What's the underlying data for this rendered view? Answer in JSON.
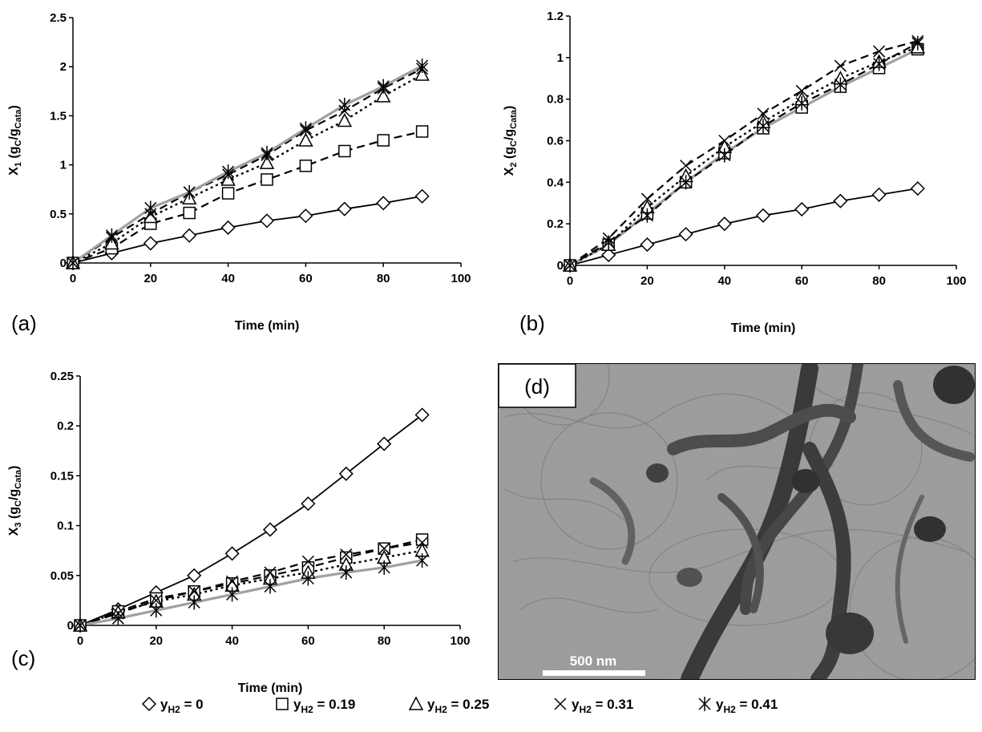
{
  "panels": {
    "a": {
      "letter": "(a)"
    },
    "b": {
      "letter": "(b)"
    },
    "c": {
      "letter": "(c)"
    },
    "d": {
      "letter": "(d)",
      "scale_label": "500 nm"
    }
  },
  "legend": [
    {
      "marker": "diamond",
      "label": "y",
      "sub": "H2",
      "value": " = 0"
    },
    {
      "marker": "square",
      "label": "y",
      "sub": "H2",
      "value": " = 0.19"
    },
    {
      "marker": "triangle",
      "label": "y",
      "sub": "H2",
      "value": " = 0.25"
    },
    {
      "marker": "x",
      "label": "y",
      "sub": "H2",
      "value": " = 0.31"
    },
    {
      "marker": "asterisk",
      "label": "y",
      "sub": "H2",
      "value": " = 0.41"
    }
  ],
  "colors": {
    "gray_line": "#a0a0a0",
    "black": "#000000",
    "tem_background": "#9a9a9a"
  },
  "chart_data": [
    {
      "type": "line",
      "panel": "a",
      "xlabel": "Time (min)",
      "ylabel": {
        "main": "X",
        "sub1": "1",
        "unit_open": " (g",
        "sub2": "C",
        "mid": "/g",
        "sub3": "Cata",
        "unit_close": ")"
      },
      "xlim": [
        0,
        100
      ],
      "ylim": [
        0,
        2.5
      ],
      "xticks": [
        0,
        20,
        40,
        60,
        80,
        100
      ],
      "yticks": [
        0,
        0.5,
        1,
        1.5,
        2,
        2.5
      ],
      "ytick_labels": [
        "0",
        "0.5",
        "1",
        "1.5",
        "2",
        "2.5"
      ],
      "x": [
        0,
        10,
        20,
        30,
        40,
        50,
        60,
        70,
        80,
        90
      ],
      "series": [
        {
          "marker": "diamond",
          "style": "solid",
          "values": [
            0,
            0.1,
            0.2,
            0.28,
            0.36,
            0.43,
            0.48,
            0.55,
            0.61,
            0.68
          ]
        },
        {
          "marker": "square",
          "style": "dashed",
          "values": [
            0,
            0.15,
            0.4,
            0.51,
            0.71,
            0.85,
            0.99,
            1.14,
            1.25,
            1.34
          ]
        },
        {
          "marker": "triangle",
          "style": "dotted",
          "values": [
            0,
            0.2,
            0.47,
            0.66,
            0.85,
            1.02,
            1.25,
            1.45,
            1.7,
            1.92
          ]
        },
        {
          "marker": "x",
          "style": "dashed",
          "values": [
            0,
            0.26,
            0.5,
            0.72,
            0.9,
            1.1,
            1.35,
            1.55,
            1.78,
            1.98
          ]
        },
        {
          "marker": "asterisk",
          "style": "gray",
          "values": [
            0,
            0.28,
            0.56,
            0.72,
            0.93,
            1.12,
            1.37,
            1.61,
            1.8,
            2.01
          ]
        }
      ]
    },
    {
      "type": "line",
      "panel": "b",
      "xlabel": "Time (min)",
      "ylabel": {
        "main": "X",
        "sub1": "2",
        "unit_open": " (g",
        "sub2": "C",
        "mid": "/g",
        "sub3": "Cata",
        "unit_close": ")"
      },
      "xlim": [
        0,
        100
      ],
      "ylim": [
        0,
        1.2
      ],
      "xticks": [
        0,
        20,
        40,
        60,
        80,
        100
      ],
      "yticks": [
        0,
        0.2,
        0.4,
        0.6,
        0.8,
        1,
        1.2
      ],
      "ytick_labels": [
        "0",
        "0.2",
        "0.4",
        "0.6",
        "0.8",
        "1",
        "1.2"
      ],
      "x": [
        0,
        10,
        20,
        30,
        40,
        50,
        60,
        70,
        80,
        90
      ],
      "series": [
        {
          "marker": "diamond",
          "style": "solid",
          "values": [
            0,
            0.05,
            0.1,
            0.15,
            0.2,
            0.24,
            0.27,
            0.31,
            0.34,
            0.37
          ]
        },
        {
          "marker": "square",
          "style": "gray",
          "values": [
            0,
            0.1,
            0.25,
            0.4,
            0.54,
            0.66,
            0.76,
            0.86,
            0.95,
            1.04
          ]
        },
        {
          "marker": "triangle",
          "style": "dotted",
          "values": [
            0,
            0.1,
            0.28,
            0.43,
            0.57,
            0.69,
            0.8,
            0.9,
            0.98,
            1.05
          ]
        },
        {
          "marker": "x",
          "style": "dashed",
          "values": [
            0,
            0.13,
            0.32,
            0.48,
            0.6,
            0.73,
            0.84,
            0.96,
            1.03,
            1.08
          ]
        },
        {
          "marker": "asterisk",
          "style": "dashed",
          "values": [
            0,
            0.11,
            0.24,
            0.4,
            0.53,
            0.67,
            0.78,
            0.87,
            0.97,
            1.07
          ]
        }
      ]
    },
    {
      "type": "line",
      "panel": "c",
      "xlabel": "Time (min)",
      "ylabel": {
        "main": "X",
        "sub1": "3",
        "unit_open": " (g",
        "sub2": "C",
        "mid": "/g",
        "sub3": "Cata",
        "unit_close": ")"
      },
      "xlim": [
        0,
        100
      ],
      "ylim": [
        0,
        0.25
      ],
      "xticks": [
        0,
        20,
        40,
        60,
        80,
        100
      ],
      "yticks": [
        0,
        0.05,
        0.1,
        0.15,
        0.2,
        0.25
      ],
      "ytick_labels": [
        "0",
        "0.05",
        "0.1",
        "0.15",
        "0.2",
        "0.25"
      ],
      "x": [
        0,
        10,
        20,
        30,
        40,
        50,
        60,
        70,
        80,
        90
      ],
      "series": [
        {
          "marker": "diamond",
          "style": "solid",
          "values": [
            0,
            0.016,
            0.033,
            0.05,
            0.072,
            0.096,
            0.122,
            0.152,
            0.182,
            0.211
          ]
        },
        {
          "marker": "square",
          "style": "dashed",
          "values": [
            0,
            0.014,
            0.027,
            0.034,
            0.042,
            0.05,
            0.058,
            0.068,
            0.077,
            0.086
          ]
        },
        {
          "marker": "triangle",
          "style": "dotted",
          "values": [
            0,
            0.013,
            0.024,
            0.031,
            0.04,
            0.047,
            0.053,
            0.061,
            0.068,
            0.075
          ]
        },
        {
          "marker": "x",
          "style": "dashed",
          "values": [
            0,
            0.012,
            0.025,
            0.034,
            0.044,
            0.053,
            0.064,
            0.071,
            0.077,
            0.083
          ]
        },
        {
          "marker": "asterisk",
          "style": "gray",
          "values": [
            0,
            0.007,
            0.015,
            0.023,
            0.031,
            0.039,
            0.047,
            0.053,
            0.058,
            0.065
          ]
        }
      ]
    }
  ]
}
